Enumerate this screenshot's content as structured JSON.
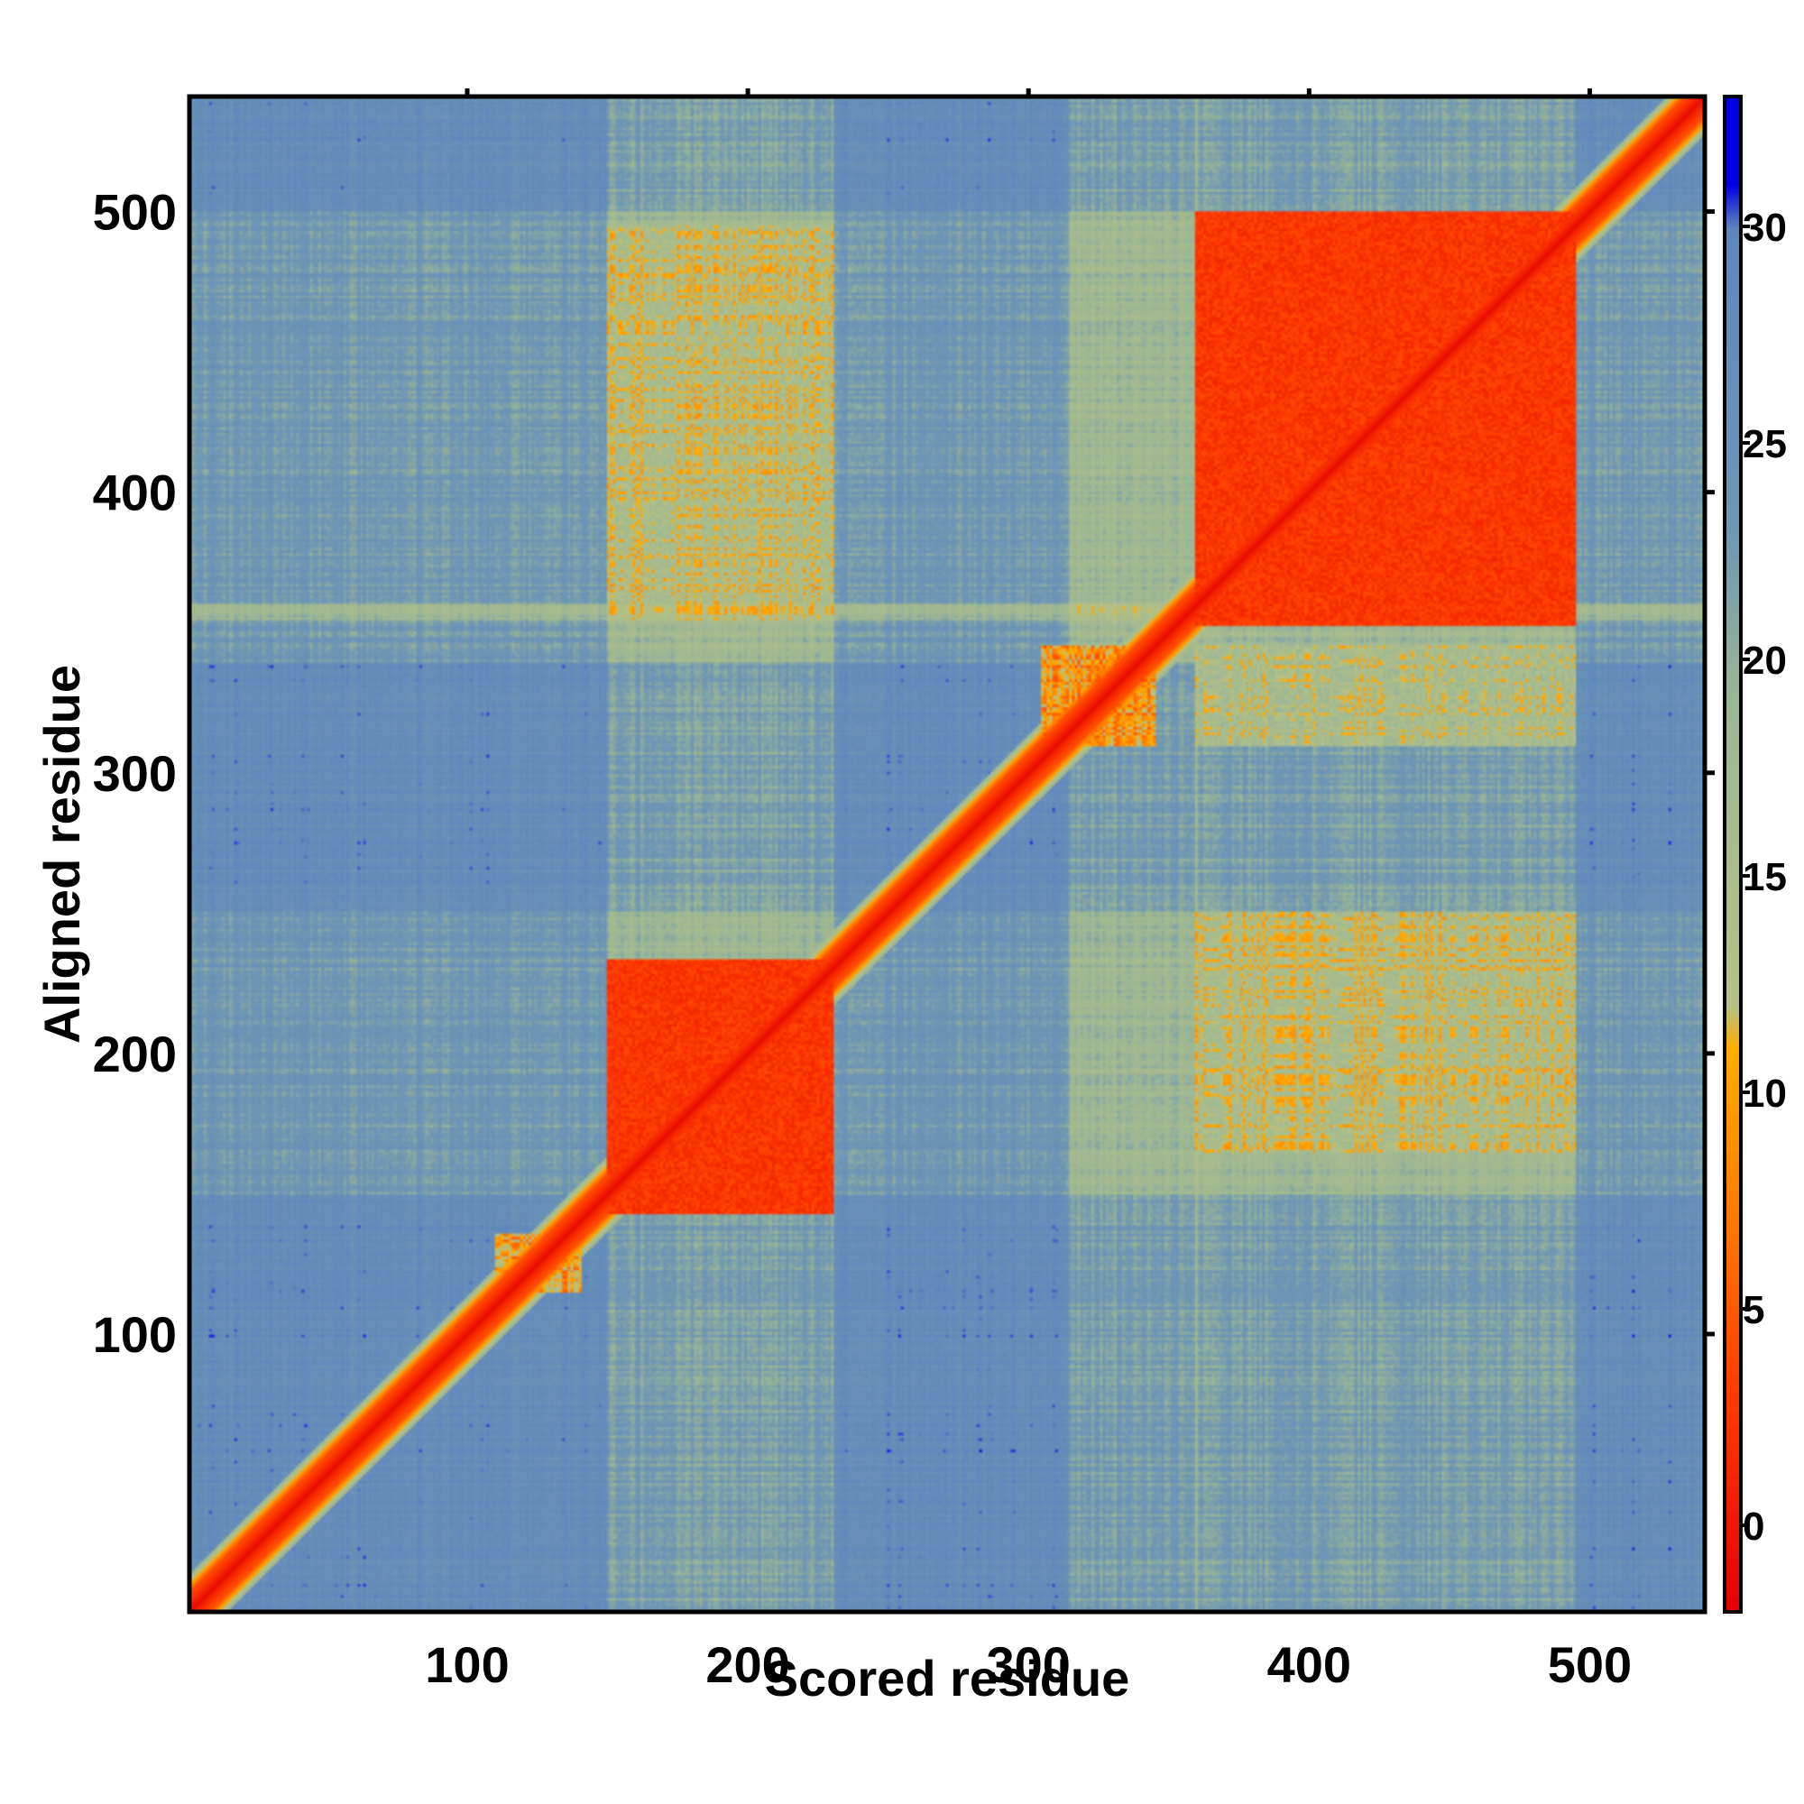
{
  "chart_data": {
    "type": "heatmap",
    "title": "",
    "xlabel": "Scored residue",
    "ylabel": "Aligned residue",
    "xlim": [
      1,
      541
    ],
    "ylim": [
      1,
      541
    ],
    "x_ticks": [
      100,
      200,
      300,
      400,
      500
    ],
    "y_ticks": [
      100,
      200,
      300,
      400,
      500
    ],
    "colorbar": {
      "range": [
        -2,
        33
      ],
      "ticks": [
        0,
        5,
        10,
        15,
        20,
        25,
        30
      ],
      "stops": [
        {
          "value": -2,
          "color": "#e60000"
        },
        {
          "value": 3,
          "color": "#ff3c00"
        },
        {
          "value": 7,
          "color": "#ff7800"
        },
        {
          "value": 11,
          "color": "#ffad00"
        },
        {
          "value": 12,
          "color": "#b5c186"
        },
        {
          "value": 19,
          "color": "#9db794"
        },
        {
          "value": 23,
          "color": "#6e97b4"
        },
        {
          "value": 30,
          "color": "#5e86bd"
        },
        {
          "value": 31,
          "color": "#0000e6"
        },
        {
          "value": 33,
          "color": "#0000e6"
        }
      ]
    },
    "background_value": 27,
    "diagonal_value": -1,
    "domain_blocks": [
      {
        "x": [
          150,
          230
        ],
        "y": [
          143,
          233
        ],
        "value": 2.5
      },
      {
        "x": [
          360,
          495
        ],
        "y": [
          353,
          500
        ],
        "value": 2.5
      }
    ],
    "off_diagonal_patches": [
      {
        "x": [
          150,
          230
        ],
        "y": [
          355,
          495
        ],
        "value": 10
      },
      {
        "x": [
          360,
          495
        ],
        "y": [
          165,
          250
        ],
        "value": 10
      },
      {
        "x": [
          360,
          495
        ],
        "y": [
          310,
          345
        ],
        "value": 11
      },
      {
        "x": [
          305,
          345
        ],
        "y": [
          310,
          345
        ],
        "value": 5
      },
      {
        "x": [
          110,
          140
        ],
        "y": [
          115,
          135
        ],
        "value": 6
      }
    ],
    "light_stripes_x": [
      [
        150,
        230
      ],
      [
        315,
        360
      ],
      [
        360,
        495
      ]
    ],
    "light_stripes_y": [
      [
        150,
        250
      ],
      [
        340,
        360
      ],
      [
        355,
        500
      ]
    ]
  }
}
